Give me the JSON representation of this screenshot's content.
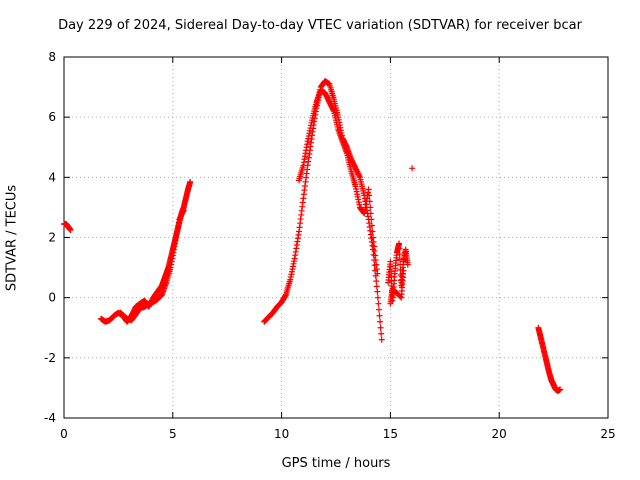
{
  "chart_data": {
    "type": "scatter",
    "title": "Day 229 of 2024, Sidereal Day-to-day VTEC variation (SDTVAR) for receiver bcar",
    "xlabel": "GPS time / hours",
    "ylabel": "SDTVAR / TECUs",
    "xlim": [
      0,
      25
    ],
    "ylim": [
      -4,
      8
    ],
    "xticks": [
      0,
      5,
      10,
      15,
      20,
      25
    ],
    "yticks": [
      -4,
      -2,
      0,
      2,
      4,
      6,
      8
    ],
    "grid": true,
    "marker": "+",
    "color": "#ff0000",
    "series": [
      {
        "name": "segment-1",
        "x": [
          0.0,
          0.1,
          0.2,
          0.3
        ],
        "y": [
          2.45,
          2.45,
          2.35,
          2.25
        ]
      },
      {
        "name": "segment-2",
        "x": [
          1.7,
          1.9,
          2.1,
          2.3,
          2.5,
          2.7,
          2.9,
          3.1,
          3.3,
          3.5,
          3.7,
          3.9,
          4.1,
          4.3,
          4.5,
          4.6,
          4.7,
          4.8,
          4.9,
          5.0,
          5.1,
          5.2,
          5.3,
          5.4,
          5.5,
          5.6,
          5.7,
          5.8
        ],
        "y": [
          -0.7,
          -0.8,
          -0.75,
          -0.6,
          -0.5,
          -0.6,
          -0.8,
          -0.6,
          -0.3,
          -0.2,
          -0.1,
          -0.3,
          0.0,
          0.2,
          0.4,
          0.6,
          0.8,
          1.0,
          1.3,
          1.6,
          1.9,
          2.2,
          2.5,
          2.8,
          3.0,
          3.3,
          3.6,
          3.85
        ]
      },
      {
        "name": "segment-2b",
        "x": [
          2.6,
          2.9,
          3.1,
          3.3,
          3.5,
          3.7,
          3.9,
          4.1,
          4.3,
          4.5,
          4.7,
          4.9,
          5.1,
          5.3,
          5.5
        ],
        "y": [
          -0.5,
          -0.7,
          -0.75,
          -0.55,
          -0.35,
          -0.3,
          -0.2,
          -0.15,
          -0.05,
          0.1,
          0.5,
          1.0,
          1.8,
          2.6,
          2.9
        ]
      },
      {
        "name": "segment-3",
        "x": [
          9.2,
          9.4,
          9.6,
          9.8,
          10.0,
          10.2,
          10.4,
          10.6,
          10.8,
          11.0,
          11.2,
          11.4,
          11.6,
          11.8,
          12.0,
          12.2,
          12.4,
          12.6,
          12.8,
          13.0,
          13.2,
          13.4,
          13.6,
          13.8,
          14.0,
          14.2,
          14.4,
          14.6
        ],
        "y": [
          -0.8,
          -0.65,
          -0.5,
          -0.3,
          -0.15,
          0.1,
          0.6,
          1.3,
          2.2,
          3.3,
          4.4,
          5.4,
          6.3,
          7.0,
          7.2,
          7.1,
          6.6,
          6.0,
          5.3,
          5.0,
          4.6,
          4.3,
          4.0,
          3.4,
          2.6,
          1.6,
          0.2,
          -1.4
        ]
      },
      {
        "name": "segment-3b",
        "x": [
          10.8,
          11.0,
          11.2,
          11.4,
          11.6,
          11.8,
          12.0,
          12.2,
          12.4,
          12.6,
          12.8,
          13.0,
          13.2,
          13.4,
          13.6,
          13.8,
          14.0,
          14.2,
          14.4
        ],
        "y": [
          3.9,
          4.4,
          5.2,
          5.9,
          6.5,
          6.9,
          6.8,
          6.5,
          6.2,
          5.6,
          5.2,
          4.8,
          4.2,
          3.7,
          3.0,
          2.8,
          3.6,
          2.0,
          0.8
        ]
      },
      {
        "name": "segment-4",
        "x": [
          14.9,
          15.0,
          15.1,
          15.2,
          15.3,
          15.4,
          15.5,
          15.6,
          15.7,
          15.8
        ],
        "y": [
          0.5,
          1.2,
          -0.1,
          0.8,
          1.5,
          1.8,
          0.4,
          1.2,
          1.6,
          1.1
        ]
      },
      {
        "name": "segment-4b",
        "x": [
          15.0,
          15.1,
          15.5,
          15.6
        ],
        "y": [
          -0.2,
          0.3,
          0.0,
          0.9
        ]
      },
      {
        "name": "segment-5",
        "x": [
          16.0
        ],
        "y": [
          4.3
        ]
      },
      {
        "name": "segment-6",
        "x": [
          21.8,
          21.9,
          22.0,
          22.1,
          22.2,
          22.3,
          22.4,
          22.5,
          22.6,
          22.7,
          22.8
        ],
        "y": [
          -1.0,
          -1.3,
          -1.6,
          -1.9,
          -2.2,
          -2.5,
          -2.75,
          -2.9,
          -3.05,
          -3.1,
          -3.05
        ]
      }
    ]
  }
}
